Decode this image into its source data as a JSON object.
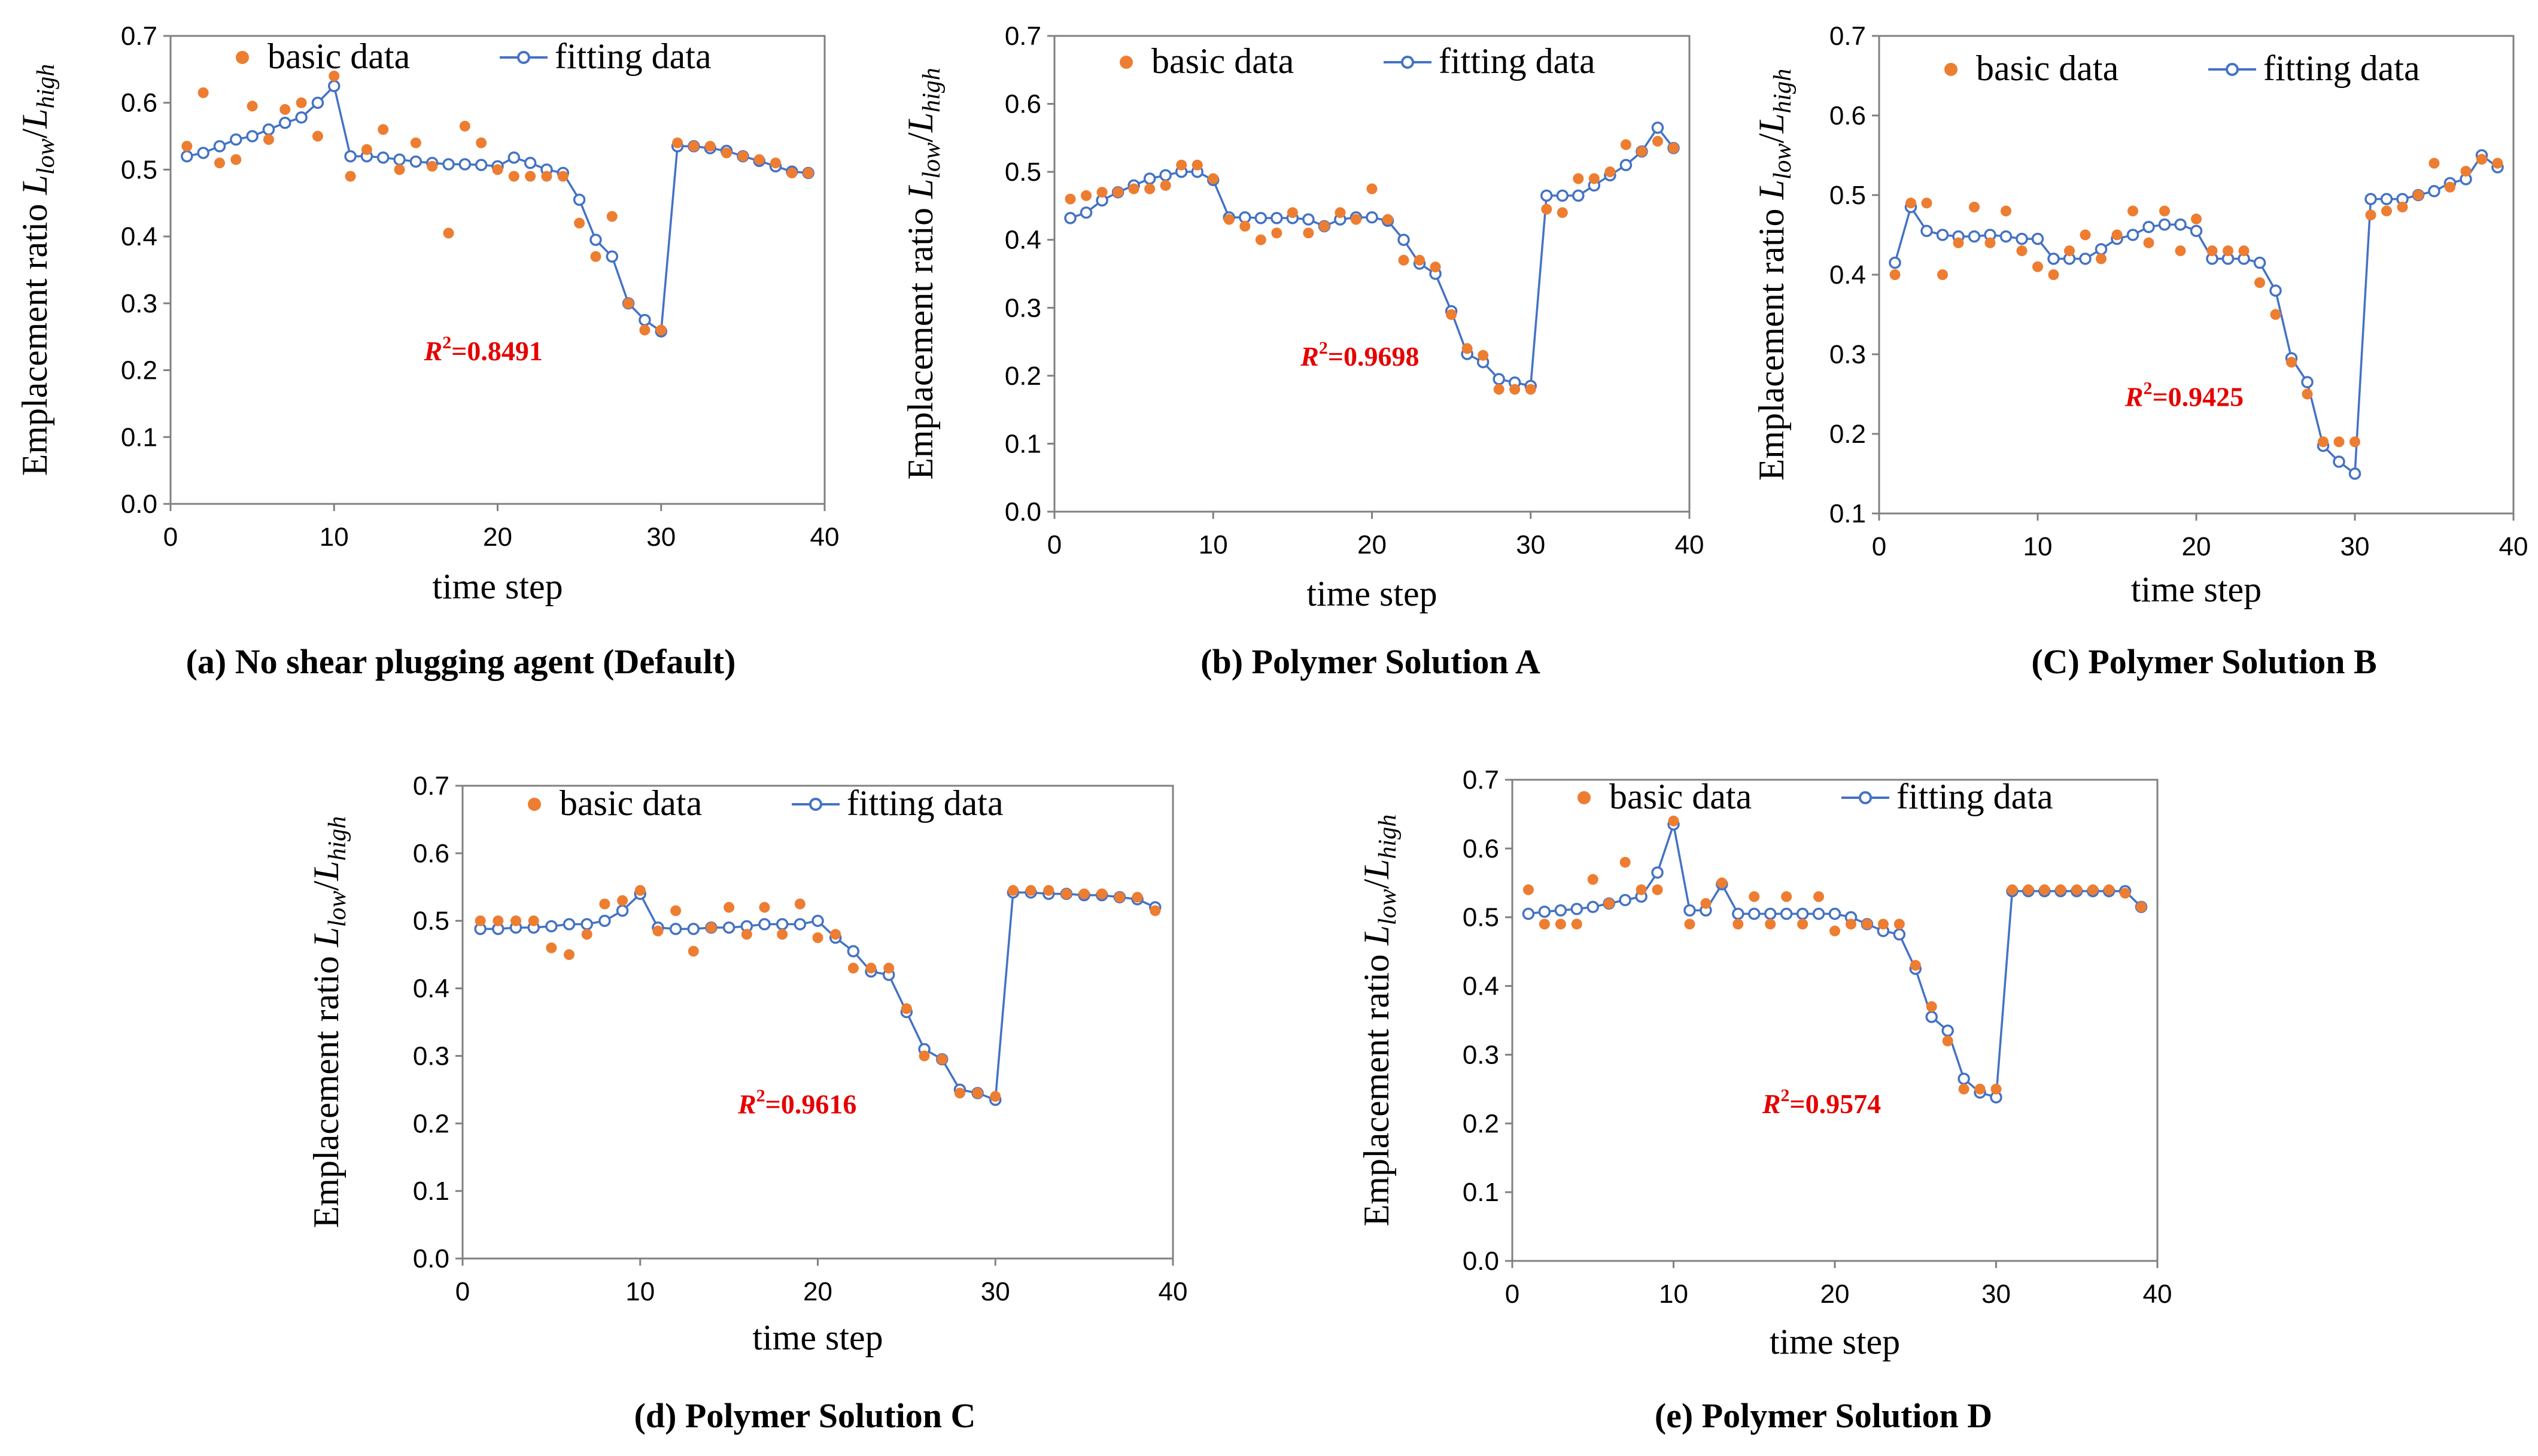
{
  "colors": {
    "basic": "#ED7D31",
    "fitting": "#4472C4",
    "r2": "#E60000",
    "axis": "#808080"
  },
  "chart_data": [
    {
      "type": "line",
      "caption": "(a) No shear plugging agent (Default)",
      "xlabel": "time  step",
      "ylabel": "Emplacement ratio",
      "ylabel_symbol": "L",
      "ylabel_num_sub": "low",
      "ylabel_den_sub": "high",
      "xlim": [
        0,
        40
      ],
      "ylim": [
        0.0,
        0.7
      ],
      "xticks": [
        "0",
        "10",
        "20",
        "30",
        "40"
      ],
      "yticks": [
        "0.0",
        "0.1",
        "0.2",
        "0.3",
        "0.4",
        "0.5",
        "0.6",
        "0.7"
      ],
      "legend": [
        "basic data",
        "fitting data"
      ],
      "r2_symbol": "R",
      "r2_value": "=0.8491",
      "x": [
        1,
        2,
        3,
        4,
        5,
        6,
        7,
        8,
        9,
        10,
        11,
        12,
        13,
        14,
        15,
        16,
        17,
        18,
        19,
        20,
        21,
        22,
        23,
        24,
        25,
        26,
        27,
        28,
        29,
        30,
        31,
        32,
        33,
        34,
        35,
        36,
        37,
        38,
        39
      ],
      "series": [
        {
          "name": "basic data",
          "values": [
            0.535,
            0.615,
            0.51,
            0.515,
            0.595,
            0.545,
            0.59,
            0.6,
            0.55,
            0.64,
            0.49,
            0.53,
            0.56,
            0.5,
            0.54,
            0.505,
            0.405,
            0.565,
            0.54,
            0.5,
            0.49,
            0.49,
            0.49,
            0.49,
            0.42,
            0.37,
            0.43,
            0.3,
            0.26,
            0.26,
            0.54,
            0.535,
            0.535,
            0.525,
            0.52,
            0.515,
            0.51,
            0.495,
            0.495
          ]
        },
        {
          "name": "fitting data",
          "values": [
            0.52,
            0.525,
            0.535,
            0.545,
            0.55,
            0.56,
            0.57,
            0.578,
            0.6,
            0.625,
            0.52,
            0.52,
            0.518,
            0.515,
            0.512,
            0.51,
            0.508,
            0.508,
            0.507,
            0.505,
            0.518,
            0.51,
            0.5,
            0.495,
            0.455,
            0.395,
            0.37,
            0.3,
            0.275,
            0.258,
            0.535,
            0.535,
            0.532,
            0.528,
            0.52,
            0.513,
            0.505,
            0.497,
            0.495
          ]
        }
      ]
    },
    {
      "type": "line",
      "caption": "(b) Polymer Solution A",
      "xlabel": "time step",
      "ylabel": "Emplacement ratio",
      "ylabel_symbol": "L",
      "ylabel_num_sub": "low",
      "ylabel_den_sub": "high",
      "xlim": [
        0,
        40
      ],
      "ylim": [
        0.0,
        0.7
      ],
      "xticks": [
        "0",
        "10",
        "20",
        "30",
        "40"
      ],
      "yticks": [
        "0.0",
        "0.1",
        "0.2",
        "0.3",
        "0.4",
        "0.5",
        "0.6",
        "0.7"
      ],
      "legend": [
        "basic data",
        "fitting data"
      ],
      "r2_symbol": "R",
      "r2_value": "=0.9698",
      "x": [
        1,
        2,
        3,
        4,
        5,
        6,
        7,
        8,
        9,
        10,
        11,
        12,
        13,
        14,
        15,
        16,
        17,
        18,
        19,
        20,
        21,
        22,
        23,
        24,
        25,
        26,
        27,
        28,
        29,
        30,
        31,
        32,
        33,
        34,
        35,
        36,
        37,
        38,
        39
      ],
      "series": [
        {
          "name": "basic data",
          "values": [
            0.46,
            0.465,
            0.47,
            0.47,
            0.475,
            0.475,
            0.48,
            0.51,
            0.51,
            0.49,
            0.43,
            0.42,
            0.4,
            0.41,
            0.44,
            0.41,
            0.42,
            0.44,
            0.43,
            0.475,
            0.43,
            0.37,
            0.37,
            0.36,
            0.29,
            0.24,
            0.23,
            0.18,
            0.18,
            0.18,
            0.445,
            0.44,
            0.49,
            0.49,
            0.5,
            0.54,
            0.53,
            0.545,
            0.535
          ]
        },
        {
          "name": "fitting data",
          "values": [
            0.432,
            0.44,
            0.458,
            0.47,
            0.48,
            0.49,
            0.495,
            0.5,
            0.5,
            0.488,
            0.433,
            0.433,
            0.432,
            0.432,
            0.432,
            0.43,
            0.42,
            0.43,
            0.433,
            0.433,
            0.428,
            0.4,
            0.365,
            0.35,
            0.295,
            0.232,
            0.22,
            0.195,
            0.19,
            0.185,
            0.465,
            0.465,
            0.465,
            0.48,
            0.495,
            0.51,
            0.53,
            0.565,
            0.535
          ]
        }
      ]
    },
    {
      "type": "line",
      "caption": "(C) Polymer Solution B",
      "xlabel": "time step",
      "ylabel": "Emplacement ratio",
      "ylabel_symbol": "L",
      "ylabel_num_sub": "low",
      "ylabel_den_sub": "high",
      "xlim": [
        0,
        40
      ],
      "ylim": [
        0.1,
        0.7
      ],
      "xticks": [
        "0",
        "10",
        "20",
        "30",
        "40"
      ],
      "yticks": [
        "0.1",
        "0.2",
        "0.3",
        "0.4",
        "0.5",
        "0.6",
        "0.7"
      ],
      "legend": [
        "basic data",
        "fitting data"
      ],
      "r2_symbol": "R",
      "r2_value": "=0.9425",
      "x": [
        1,
        2,
        3,
        4,
        5,
        6,
        7,
        8,
        9,
        10,
        11,
        12,
        13,
        14,
        15,
        16,
        17,
        18,
        19,
        20,
        21,
        22,
        23,
        24,
        25,
        26,
        27,
        28,
        29,
        30,
        31,
        32,
        33,
        34,
        35,
        36,
        37,
        38,
        39
      ],
      "series": [
        {
          "name": "basic data",
          "values": [
            0.4,
            0.49,
            0.49,
            0.4,
            0.44,
            0.485,
            0.44,
            0.48,
            0.43,
            0.41,
            0.4,
            0.43,
            0.45,
            0.42,
            0.45,
            0.48,
            0.44,
            0.48,
            0.43,
            0.47,
            0.43,
            0.43,
            0.43,
            0.39,
            0.35,
            0.29,
            0.25,
            0.19,
            0.19,
            0.19,
            0.475,
            0.48,
            0.485,
            0.5,
            0.54,
            0.51,
            0.53,
            0.545,
            0.54
          ]
        },
        {
          "name": "fitting data",
          "values": [
            0.415,
            0.485,
            0.455,
            0.45,
            0.448,
            0.448,
            0.45,
            0.448,
            0.445,
            0.445,
            0.42,
            0.42,
            0.42,
            0.432,
            0.445,
            0.45,
            0.46,
            0.463,
            0.463,
            0.455,
            0.42,
            0.42,
            0.42,
            0.415,
            0.38,
            0.295,
            0.265,
            0.185,
            0.165,
            0.15,
            0.495,
            0.495,
            0.495,
            0.5,
            0.505,
            0.515,
            0.52,
            0.55,
            0.535
          ]
        }
      ]
    },
    {
      "type": "line",
      "caption": "(d) Polymer Solution C",
      "xlabel": "time step",
      "ylabel": "Emplacement ratio",
      "ylabel_symbol": "L",
      "ylabel_num_sub": "low",
      "ylabel_den_sub": "high",
      "xlim": [
        0,
        40
      ],
      "ylim": [
        0.0,
        0.7
      ],
      "xticks": [
        "0",
        "10",
        "20",
        "30",
        "40"
      ],
      "yticks": [
        "0.0",
        "0.1",
        "0.2",
        "0.3",
        "0.4",
        "0.5",
        "0.6",
        "0.7"
      ],
      "legend": [
        "basic data",
        "fitting data"
      ],
      "r2_symbol": "R",
      "r2_value": "=0.9616",
      "x": [
        1,
        2,
        3,
        4,
        5,
        6,
        7,
        8,
        9,
        10,
        11,
        12,
        13,
        14,
        15,
        16,
        17,
        18,
        19,
        20,
        21,
        22,
        23,
        24,
        25,
        26,
        27,
        28,
        29,
        30,
        31,
        32,
        33,
        34,
        35,
        36,
        37,
        38,
        39
      ],
      "series": [
        {
          "name": "basic data",
          "values": [
            0.5,
            0.5,
            0.5,
            0.5,
            0.46,
            0.45,
            0.48,
            0.525,
            0.53,
            0.545,
            0.485,
            0.515,
            0.455,
            0.49,
            0.52,
            0.48,
            0.52,
            0.48,
            0.525,
            0.475,
            0.48,
            0.43,
            0.43,
            0.43,
            0.37,
            0.3,
            0.295,
            0.245,
            0.245,
            0.24,
            0.545,
            0.545,
            0.545,
            0.54,
            0.54,
            0.54,
            0.535,
            0.535,
            0.515
          ]
        },
        {
          "name": "fitting data",
          "values": [
            0.488,
            0.488,
            0.49,
            0.49,
            0.492,
            0.495,
            0.495,
            0.5,
            0.515,
            0.54,
            0.49,
            0.488,
            0.488,
            0.49,
            0.49,
            0.492,
            0.495,
            0.495,
            0.495,
            0.5,
            0.475,
            0.455,
            0.425,
            0.42,
            0.365,
            0.31,
            0.295,
            0.25,
            0.245,
            0.235,
            0.542,
            0.542,
            0.54,
            0.54,
            0.538,
            0.538,
            0.535,
            0.532,
            0.52
          ]
        }
      ]
    },
    {
      "type": "line",
      "caption": "(e) Polymer Solution D",
      "xlabel": "time step",
      "ylabel": "Emplacement ratio",
      "ylabel_symbol": "L",
      "ylabel_num_sub": "low",
      "ylabel_den_sub": "high",
      "xlim": [
        0,
        40
      ],
      "ylim": [
        0.0,
        0.7
      ],
      "xticks": [
        "0",
        "10",
        "20",
        "30",
        "40"
      ],
      "yticks": [
        "0.0",
        "0.1",
        "0.2",
        "0.3",
        "0.4",
        "0.5",
        "0.6",
        "0.7"
      ],
      "legend": [
        "basic data",
        "fitting data"
      ],
      "r2_symbol": "R",
      "r2_value": "=0.9574",
      "x": [
        1,
        2,
        3,
        4,
        5,
        6,
        7,
        8,
        9,
        10,
        11,
        12,
        13,
        14,
        15,
        16,
        17,
        18,
        19,
        20,
        21,
        22,
        23,
        24,
        25,
        26,
        27,
        28,
        29,
        30,
        31,
        32,
        33,
        34,
        35,
        36,
        37,
        38,
        39
      ],
      "series": [
        {
          "name": "basic data",
          "values": [
            0.54,
            0.49,
            0.49,
            0.49,
            0.555,
            0.52,
            0.58,
            0.54,
            0.54,
            0.64,
            0.49,
            0.52,
            0.55,
            0.49,
            0.53,
            0.49,
            0.53,
            0.49,
            0.53,
            0.48,
            0.49,
            0.49,
            0.49,
            0.49,
            0.43,
            0.37,
            0.32,
            0.25,
            0.25,
            0.25,
            0.54,
            0.54,
            0.54,
            0.54,
            0.54,
            0.54,
            0.54,
            0.535,
            0.515
          ]
        },
        {
          "name": "fitting data",
          "values": [
            0.505,
            0.508,
            0.51,
            0.512,
            0.515,
            0.52,
            0.525,
            0.53,
            0.565,
            0.635,
            0.51,
            0.51,
            0.548,
            0.505,
            0.505,
            0.505,
            0.505,
            0.505,
            0.505,
            0.505,
            0.5,
            0.49,
            0.48,
            0.475,
            0.425,
            0.355,
            0.335,
            0.265,
            0.245,
            0.238,
            0.538,
            0.538,
            0.538,
            0.538,
            0.538,
            0.538,
            0.538,
            0.538,
            0.515
          ]
        }
      ]
    }
  ]
}
